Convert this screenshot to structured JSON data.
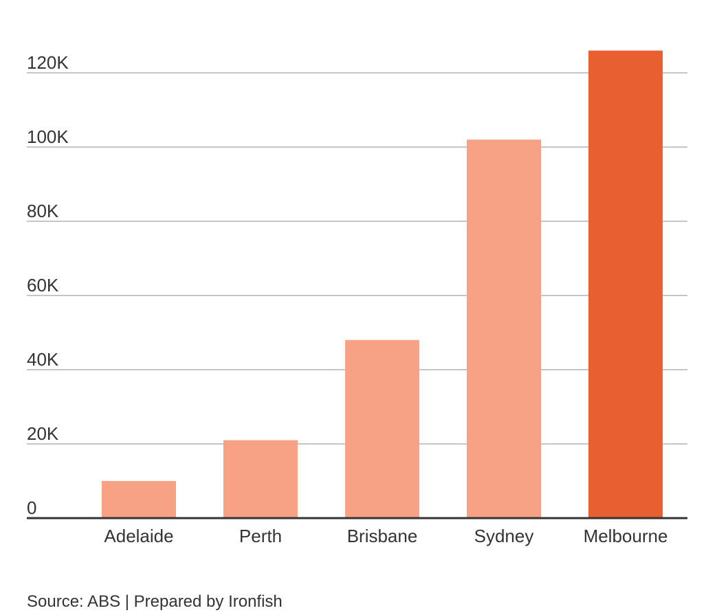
{
  "chart_data": {
    "type": "bar",
    "categories": [
      "Adelaide",
      "Perth",
      "Brisbane",
      "Sydney",
      "Melbourne"
    ],
    "values": [
      10000,
      21000,
      48000,
      102000,
      126000
    ],
    "highlight_index": 4,
    "colors": {
      "bar": "#f7a285",
      "highlight": "#e85f32",
      "grid": "#b3b3b3",
      "axis": "#333333",
      "text": "#333333"
    },
    "ylim": [
      0,
      120000
    ],
    "yticks": [
      0,
      20000,
      40000,
      60000,
      80000,
      100000,
      120000
    ],
    "ytick_labels": [
      "0",
      "20K",
      "40K",
      "60K",
      "80K",
      "100K",
      "120K"
    ],
    "grid": true,
    "title": "",
    "xlabel": "",
    "ylabel": ""
  },
  "footer": {
    "source": "Source: ABS | Prepared by Ironfish"
  }
}
